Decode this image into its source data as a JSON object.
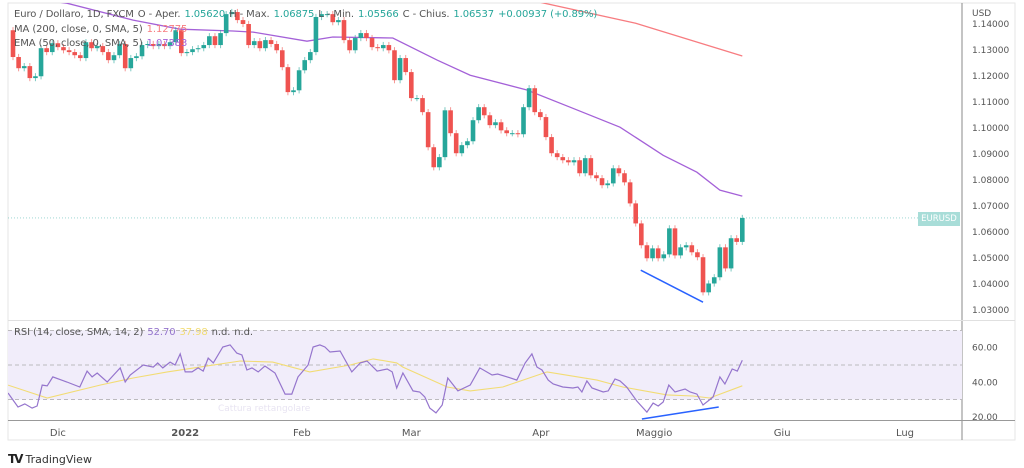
{
  "legend": {
    "symbol": "Euro / Dollaro, 1D, FXCM",
    "open_label": "O - Aper.",
    "open": "1.05620",
    "high_label": "H - Max.",
    "high": "1.06875",
    "low_label": "L - Min.",
    "low": "1.05566",
    "close_label": "C - Chius.",
    "close": "1.06537",
    "change": "+0.00937 (+0.89%)",
    "ma_label": "MA (200, close, 0, SMA, 5)",
    "ma_value": "1.12775",
    "ema_label": "EMA (50, close, 0, SMA, 5)",
    "ema_value": "1.07383",
    "rsi_label": "RSI (14, close, SMA, 14, 2)",
    "rsi_value": "52.70",
    "rsi_ma_value": "37.98",
    "rsi_nd1": "n.d.",
    "rsi_nd2": "n.d."
  },
  "price_axis": {
    "currency": "USD",
    "ticks": [
      "1.14000",
      "1.13000",
      "1.12000",
      "1.11000",
      "1.10000",
      "1.09000",
      "1.08000",
      "1.07000",
      "1.06000",
      "1.05000",
      "1.04000",
      "1.03000"
    ],
    "symbol_tag": "EURUSD"
  },
  "rsi_axis": {
    "ticks": [
      "60.00",
      "40.00",
      "20.00"
    ],
    "levels": [
      70,
      50,
      30
    ]
  },
  "time_axis": [
    {
      "label": "Dic",
      "bar": 8,
      "bold": false
    },
    {
      "label": "2022",
      "bar": 30.7,
      "bold": true
    },
    {
      "label": "Feb",
      "bar": 51.5,
      "bold": false
    },
    {
      "label": "Mar",
      "bar": 71,
      "bold": false
    },
    {
      "label": "Apr",
      "bar": 94.1,
      "bold": false
    },
    {
      "label": "Maggio",
      "bar": 114.3,
      "bold": false
    },
    {
      "label": "Giu",
      "bar": 137.1,
      "bold": false
    },
    {
      "label": "Lug",
      "bar": 159
    }
  ],
  "watermark": "Cattura rettangolare",
  "brand": "TradingView",
  "colors": {
    "up": "#26a69a",
    "down": "#ef5350",
    "ma200": "#f77c80",
    "ema50": "#a461d8",
    "rsi": "#9575cd",
    "rsi_ma": "#f2dc74",
    "rsi_bg": "#f1edfa",
    "divergence": "#2962ff"
  },
  "chart_data": {
    "type": "candlestick",
    "first_open": 1.1376,
    "closes": [
      1.1273,
      1.123,
      1.1238,
      1.1192,
      1.1199,
      1.1307,
      1.1292,
      1.1326,
      1.1311,
      1.1299,
      1.1292,
      1.128,
      1.1269,
      1.133,
      1.1307,
      1.1315,
      1.1292,
      1.1261,
      1.128,
      1.1323,
      1.123,
      1.1269,
      1.1276,
      1.1319,
      1.1323,
      1.1315,
      1.1323,
      1.1315,
      1.133,
      1.1376,
      1.1288,
      1.1292,
      1.1303,
      1.1307,
      1.1319,
      1.1353,
      1.1319,
      1.1365,
      1.1438,
      1.1446,
      1.1415,
      1.14,
      1.1319,
      1.1334,
      1.1307,
      1.1338,
      1.1323,
      1.1299,
      1.1234,
      1.1138,
      1.1145,
      1.1222,
      1.1261,
      1.1292,
      1.1427,
      1.1438,
      1.1438,
      1.1407,
      1.1415,
      1.1338,
      1.1299,
      1.1346,
      1.1365,
      1.1346,
      1.1311,
      1.1307,
      1.1319,
      1.1299,
      1.1184,
      1.1269,
      1.1215,
      1.1115,
      1.1115,
      1.1061,
      1.0926,
      1.0849,
      1.0888,
      1.1068,
      1.098,
      1.0903,
      1.0934,
      1.0949,
      1.103,
      1.108,
      1.1049,
      1.1011,
      1.1022,
      1.0991,
      1.098,
      1.098,
      1.0976,
      1.108,
      1.1153,
      1.1061,
      1.1042,
      1.0965,
      1.0903,
      1.0888,
      1.0876,
      1.0868,
      1.0876,
      1.0826,
      1.0884,
      1.0818,
      1.0807,
      1.078,
      1.0787,
      1.0845,
      1.0826,
      1.0791,
      1.071,
      1.0633,
      1.0549,
      1.0499,
      1.0537,
      1.0499,
      1.0514,
      1.0614,
      1.051,
      1.0541,
      1.0549,
      1.0522,
      1.0503,
      1.0368,
      1.0402,
      1.0426,
      1.0541,
      1.046,
      1.0576,
      1.0562,
      1.0654
    ],
    "ma200": [
      [
        93,
        1.1488
      ],
      [
        111,
        1.1403
      ],
      [
        130,
        1.1277
      ]
    ],
    "ema50": [
      [
        -1,
        1.151
      ],
      [
        9.6,
        1.148
      ],
      [
        21.4,
        1.1415
      ],
      [
        29.8,
        1.138
      ],
      [
        39.2,
        1.1373
      ],
      [
        42.8,
        1.1369
      ],
      [
        52.4,
        1.1334
      ],
      [
        57,
        1.135
      ],
      [
        67.7,
        1.1346
      ],
      [
        75.6,
        1.1261
      ],
      [
        81.5,
        1.1203
      ],
      [
        91.6,
        1.1146
      ],
      [
        99.3,
        1.108
      ],
      [
        108.2,
        1.1003
      ],
      [
        115.9,
        1.0895
      ],
      [
        121.9,
        1.083
      ],
      [
        126,
        1.0761
      ],
      [
        130,
        1.0738
      ]
    ],
    "price_divergence": [
      [
        111.9,
        1.0453
      ],
      [
        123,
        1.033
      ]
    ],
    "rsi": [
      [
        -0.9,
        33.8
      ],
      [
        0.9,
        25.7
      ],
      [
        2.1,
        27.5
      ],
      [
        3.4,
        25.1
      ],
      [
        4.3,
        26.3
      ],
      [
        5.2,
        38.4
      ],
      [
        6.1,
        37.9
      ],
      [
        7.1,
        43.1
      ],
      [
        9.6,
        40.2
      ],
      [
        11.9,
        37.3
      ],
      [
        13.2,
        46.5
      ],
      [
        14.1,
        43.1
      ],
      [
        15,
        45.4
      ],
      [
        16.8,
        40.2
      ],
      [
        19.1,
        48.3
      ],
      [
        20,
        40.2
      ],
      [
        20.9,
        44.2
      ],
      [
        23.2,
        50
      ],
      [
        25,
        48.8
      ],
      [
        25.8,
        51.2
      ],
      [
        26.7,
        48.3
      ],
      [
        28,
        51.7
      ],
      [
        28.9,
        50
      ],
      [
        29.8,
        56.4
      ],
      [
        30.7,
        46
      ],
      [
        31.9,
        46
      ],
      [
        33,
        48.3
      ],
      [
        33.9,
        46.5
      ],
      [
        34.8,
        54
      ],
      [
        35.7,
        51.2
      ],
      [
        37.4,
        60.4
      ],
      [
        38.7,
        61.6
      ],
      [
        39.9,
        56.9
      ],
      [
        40.8,
        55.8
      ],
      [
        41.7,
        47.1
      ],
      [
        42.6,
        48.3
      ],
      [
        43.7,
        46
      ],
      [
        44.9,
        49.4
      ],
      [
        46.7,
        45.4
      ],
      [
        48.5,
        33.2
      ],
      [
        49.7,
        33.2
      ],
      [
        50.8,
        43.1
      ],
      [
        52.6,
        50
      ],
      [
        53.5,
        60.4
      ],
      [
        54.7,
        61.6
      ],
      [
        55.6,
        60.4
      ],
      [
        56.5,
        57.5
      ],
      [
        58.3,
        58.1
      ],
      [
        60.4,
        46
      ],
      [
        61.9,
        51.2
      ],
      [
        63.1,
        52.3
      ],
      [
        64.9,
        46.5
      ],
      [
        66.7,
        47.7
      ],
      [
        67.6,
        46
      ],
      [
        68.4,
        36.7
      ],
      [
        69.5,
        45.4
      ],
      [
        71.3,
        35
      ],
      [
        72.5,
        34.4
      ],
      [
        73.4,
        31.5
      ],
      [
        74.3,
        25.1
      ],
      [
        75.4,
        22.3
      ],
      [
        76.5,
        26.9
      ],
      [
        77.5,
        42.5
      ],
      [
        79.3,
        35
      ],
      [
        81.5,
        38.4
      ],
      [
        83.2,
        48.3
      ],
      [
        85.4,
        44.2
      ],
      [
        86.4,
        44.8
      ],
      [
        88.1,
        43.1
      ],
      [
        89.8,
        41.3
      ],
      [
        91.3,
        51.2
      ],
      [
        92.5,
        56.4
      ],
      [
        93.4,
        48.8
      ],
      [
        94.3,
        47.1
      ],
      [
        95.4,
        41.3
      ],
      [
        96.3,
        39
      ],
      [
        98,
        37.3
      ],
      [
        99.8,
        36.7
      ],
      [
        100.7,
        37.3
      ],
      [
        101.4,
        34.4
      ],
      [
        102.3,
        40.8
      ],
      [
        103.2,
        36.7
      ],
      [
        105.2,
        34.4
      ],
      [
        106.1,
        35
      ],
      [
        107.3,
        41.9
      ],
      [
        108.2,
        40.8
      ],
      [
        109.4,
        37.3
      ],
      [
        111.2,
        29.2
      ],
      [
        113,
        22.8
      ],
      [
        114.1,
        28
      ],
      [
        115,
        26.3
      ],
      [
        115.9,
        28.6
      ],
      [
        116.9,
        38.4
      ],
      [
        118,
        34.4
      ],
      [
        119.8,
        36.1
      ],
      [
        120.7,
        34.4
      ],
      [
        121.9,
        33.2
      ],
      [
        123,
        26.9
      ],
      [
        124.8,
        31.5
      ],
      [
        126,
        43.1
      ],
      [
        126.9,
        39
      ],
      [
        128.2,
        47.7
      ],
      [
        129.1,
        46.5
      ],
      [
        130,
        52.7
      ]
    ],
    "rsi_ma": [
      [
        -0.9,
        38.4
      ],
      [
        6.1,
        30.9
      ],
      [
        15.5,
        38.4
      ],
      [
        21.4,
        42.5
      ],
      [
        27.5,
        46
      ],
      [
        33.3,
        48.8
      ],
      [
        40.5,
        52.3
      ],
      [
        46.3,
        51.7
      ],
      [
        52.9,
        46
      ],
      [
        60.1,
        50
      ],
      [
        64.2,
        53.5
      ],
      [
        68.4,
        51.2
      ],
      [
        69.5,
        48.8
      ],
      [
        77.4,
        37.3
      ],
      [
        81.5,
        35
      ],
      [
        87.3,
        37.3
      ],
      [
        95.2,
        46
      ],
      [
        104.1,
        41.3
      ],
      [
        108.7,
        37.3
      ],
      [
        116.6,
        32.7
      ],
      [
        121.2,
        32.1
      ],
      [
        124.2,
        30.9
      ],
      [
        130,
        38
      ]
    ],
    "rsi_divergence": [
      [
        112.1,
        18.8
      ],
      [
        125.8,
        25.7
      ]
    ],
    "ylim_price": [
      1.025,
      1.149
    ],
    "ylim_rsi": [
      17,
      72
    ]
  }
}
